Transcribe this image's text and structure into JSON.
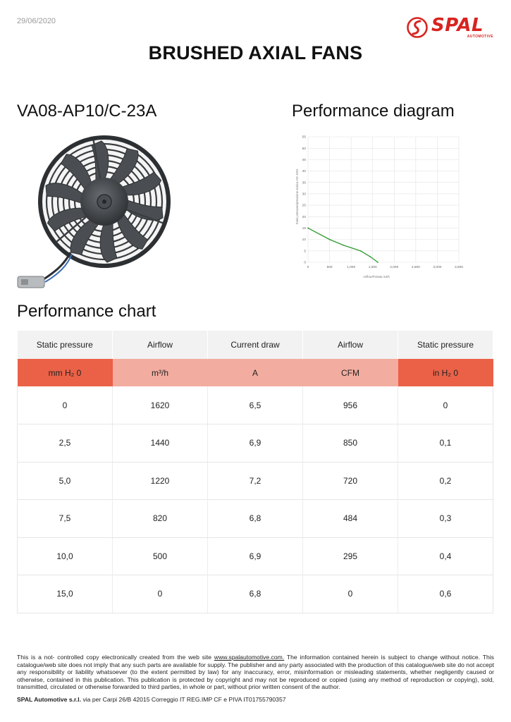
{
  "header": {
    "date": "29/06/2020",
    "brand": "SPAL",
    "brand_sub": "AUTOMOTIVE",
    "title": "BRUSHED AXIAL FANS"
  },
  "product": {
    "model": "VA08-AP10/C-23A"
  },
  "diagram": {
    "title": "Performance diagram"
  },
  "chart_data": {
    "type": "line",
    "title": "",
    "xlabel": "Airflow/Portata m3/h",
    "ylabel": "Static pressure/pressione statica mm H2O",
    "xlim": [
      0,
      3500
    ],
    "ylim": [
      0,
      55
    ],
    "x_ticks": [
      "0",
      "500",
      "1,000",
      "1,500",
      "2,000",
      "2,500",
      "3,000",
      "3,500"
    ],
    "y_ticks": [
      "0",
      "5",
      "10",
      "15",
      "20",
      "25",
      "30",
      "35",
      "40",
      "45",
      "50",
      "55"
    ],
    "grid": true,
    "series": [
      {
        "color": "#2e9a2e",
        "x": [
          0,
          500,
          820,
          1220,
          1440,
          1620
        ],
        "y": [
          15,
          10,
          7.5,
          5,
          2.5,
          0
        ]
      }
    ]
  },
  "table": {
    "title": "Performance chart",
    "headers": [
      "Static pressure",
      "Airflow",
      "Current draw",
      "Airflow",
      "Static pressure"
    ],
    "units": [
      "mm H₂ 0",
      "m³/h",
      "A",
      "CFM",
      "in H₂ 0"
    ],
    "rows": [
      [
        "0",
        "1620",
        "6,5",
        "956",
        "0"
      ],
      [
        "2,5",
        "1440",
        "6,9",
        "850",
        "0,1"
      ],
      [
        "5,0",
        "1220",
        "7,2",
        "720",
        "0,2"
      ],
      [
        "7,5",
        "820",
        "6,8",
        "484",
        "0,3"
      ],
      [
        "10,0",
        "500",
        "6,9",
        "295",
        "0,4"
      ],
      [
        "15,0",
        "0",
        "6,8",
        "0",
        "0,6"
      ]
    ],
    "unit_colors": {
      "dark": "#ea6147",
      "light": "#f2ada0"
    }
  },
  "footer": {
    "disclaimer_pre": "This is a not- controlled copy electronically created from the web site ",
    "disclaimer_link": "www.spalautomotive.com.",
    "disclaimer_post": " The information contained herein is subject to change without notice. This catalogue/web site does not imply that any such parts are available for supply. The publisher and any party associated with the production of this catalogue/web site do not accept any responsibility or liability whatsoever (to the extent permitted by law) for any inaccuracy, error, misinformation or misleading statements, whether negligently caused or otherwise, contained in this publication. This publication is protected by copyright and may not be reproduced or copied (using any method of reproduction or copying), sold, transmitted, circulated or otherwise forwarded to third parties, in whole or part, without prior written consent of the author.",
    "company": "SPAL Automotive s.r.l.",
    "address": " via per Carpi 26/B 42015 Correggio IT  REG.IMP CF e PIVA  IT01755790357"
  }
}
